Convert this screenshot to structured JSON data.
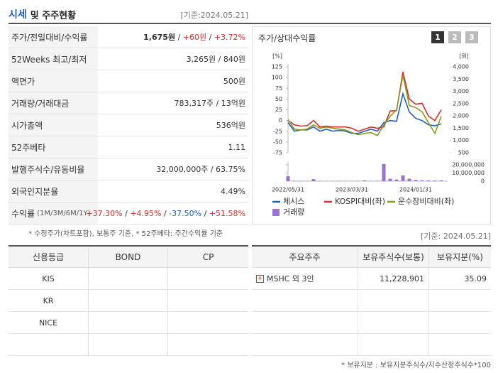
{
  "header": {
    "title": "시세",
    "title_rest": "및 주주현황",
    "date": "[기준:2024.05.21]"
  },
  "quote": {
    "rows": [
      {
        "label": "주가/전일대비/수익률",
        "value": [
          "1,675원",
          " / ",
          "+60원",
          " / ",
          "+3.72%"
        ]
      },
      {
        "label": "52Weeks 최고/최저",
        "value": [
          "3,265원 / 840원"
        ]
      },
      {
        "label": "액면가",
        "value": [
          "500원"
        ]
      },
      {
        "label": "거래량/거래대금",
        "value": [
          "783,317주 / 13억원"
        ]
      },
      {
        "label": "시가총액",
        "value": [
          "536억원"
        ]
      },
      {
        "label": "52주베타",
        "value": [
          "1.11"
        ]
      },
      {
        "label": "발행주식수/유동비율",
        "value": [
          "32,000,000주 / 63.75%"
        ]
      },
      {
        "label": "외국인지분율",
        "value": [
          "4.49%"
        ]
      },
      {
        "label": "수익률",
        "sublabel": "(1M/3M/6M/1Y)",
        "value": [
          "+37.30%",
          " / ",
          "+4.95%",
          " / ",
          "-37.50%",
          " / ",
          "+51.58%"
        ]
      }
    ],
    "footnote": "* 수정주가(차트포함), 보통주 기준, * 52주베타: 주간수익률 기준"
  },
  "chart_data": {
    "type": "line",
    "title": "주가/상대수익률",
    "tabs": [
      "1",
      "2",
      "3"
    ],
    "y_unit": "[%]",
    "y2_unit": "[원]",
    "categories": [
      "2022/05/31",
      null,
      null,
      null,
      null,
      null,
      null,
      null,
      null,
      null,
      "2023/03/31",
      null,
      null,
      null,
      null,
      null,
      null,
      null,
      null,
      null,
      "2024/01/31",
      null,
      null,
      null,
      null
    ],
    "ylim": [
      -75,
      125
    ],
    "yticks": [
      125,
      100,
      75,
      50,
      25,
      0,
      -25,
      -50,
      -75
    ],
    "y2lim": [
      500,
      4000
    ],
    "y2ticks": [
      {
        "value": 4000,
        "label": "4,000"
      },
      {
        "value": 3500,
        "label": "3,500"
      },
      {
        "value": 3000,
        "label": "3,000"
      },
      {
        "value": 2500,
        "label": "2,500"
      },
      {
        "value": 2000,
        "label": "2,000"
      },
      {
        "value": 1500,
        "label": "1,500"
      },
      {
        "value": 1000,
        "label": "1,000"
      },
      500
    ],
    "volume_lim": [
      0,
      20000000
    ],
    "volume_ticks": [
      {
        "value": 20000000,
        "label": "20,000,000"
      },
      {
        "value": 10000000,
        "label": "10,000,000"
      },
      0
    ],
    "series": [
      {
        "name": "체시스",
        "color": "#1f5fbf",
        "axis": "y2",
        "values": [
          1730,
          1380,
          1430,
          1430,
          1550,
          1380,
          1460,
          1380,
          1410,
          1380,
          1290,
          1290,
          1380,
          1460,
          1380,
          1730,
          1810,
          1780,
          2900,
          2160,
          1900,
          1810,
          1640,
          1600,
          1675
        ]
      },
      {
        "name": "KOSPI대비(좌)",
        "color": "#d0312d",
        "values": [
          0,
          -10,
          -13,
          -12,
          0,
          -15,
          -13,
          -15,
          -15,
          -15,
          -18,
          -25,
          -20,
          -15,
          -18,
          -15,
          22,
          23,
          113,
          50,
          38,
          40,
          10,
          0,
          25
        ]
      },
      {
        "name": "운수장비대비(좌)",
        "color": "#8c9a1a",
        "values": [
          2,
          -20,
          -22,
          -20,
          -10,
          -18,
          -15,
          -18,
          -20,
          -22,
          -28,
          -33,
          -30,
          -28,
          -35,
          -10,
          10,
          25,
          105,
          35,
          30,
          20,
          -5,
          -30,
          10
        ]
      },
      {
        "name": "거래량",
        "color": "#9b72d4",
        "type": "bar",
        "axis": "volume",
        "values": [
          6000000,
          500000,
          400000,
          300000,
          2500000,
          400000,
          300000,
          300000,
          400000,
          300000,
          300000,
          400000,
          1000000,
          300000,
          500000,
          21000000,
          3000000,
          2000000,
          7000000,
          3000000,
          1500000,
          1000000,
          1000000,
          800000,
          1000000
        ]
      }
    ]
  },
  "date2": "[기준: 2024.05.21]",
  "credit": {
    "headers": [
      "신용등급",
      "BOND",
      "CP"
    ],
    "agencies": [
      "KIS",
      "KR",
      "NICE"
    ]
  },
  "holders": {
    "headers": [
      "주요주주",
      "보유주식수(보통)",
      "보유지분(%)"
    ],
    "rows": [
      [
        "MSHC 외 3인",
        "11,228,901",
        "35.09"
      ]
    ],
    "footnote": "* 보유지분 : 보유지분주식수/지수산정주식수*100"
  }
}
